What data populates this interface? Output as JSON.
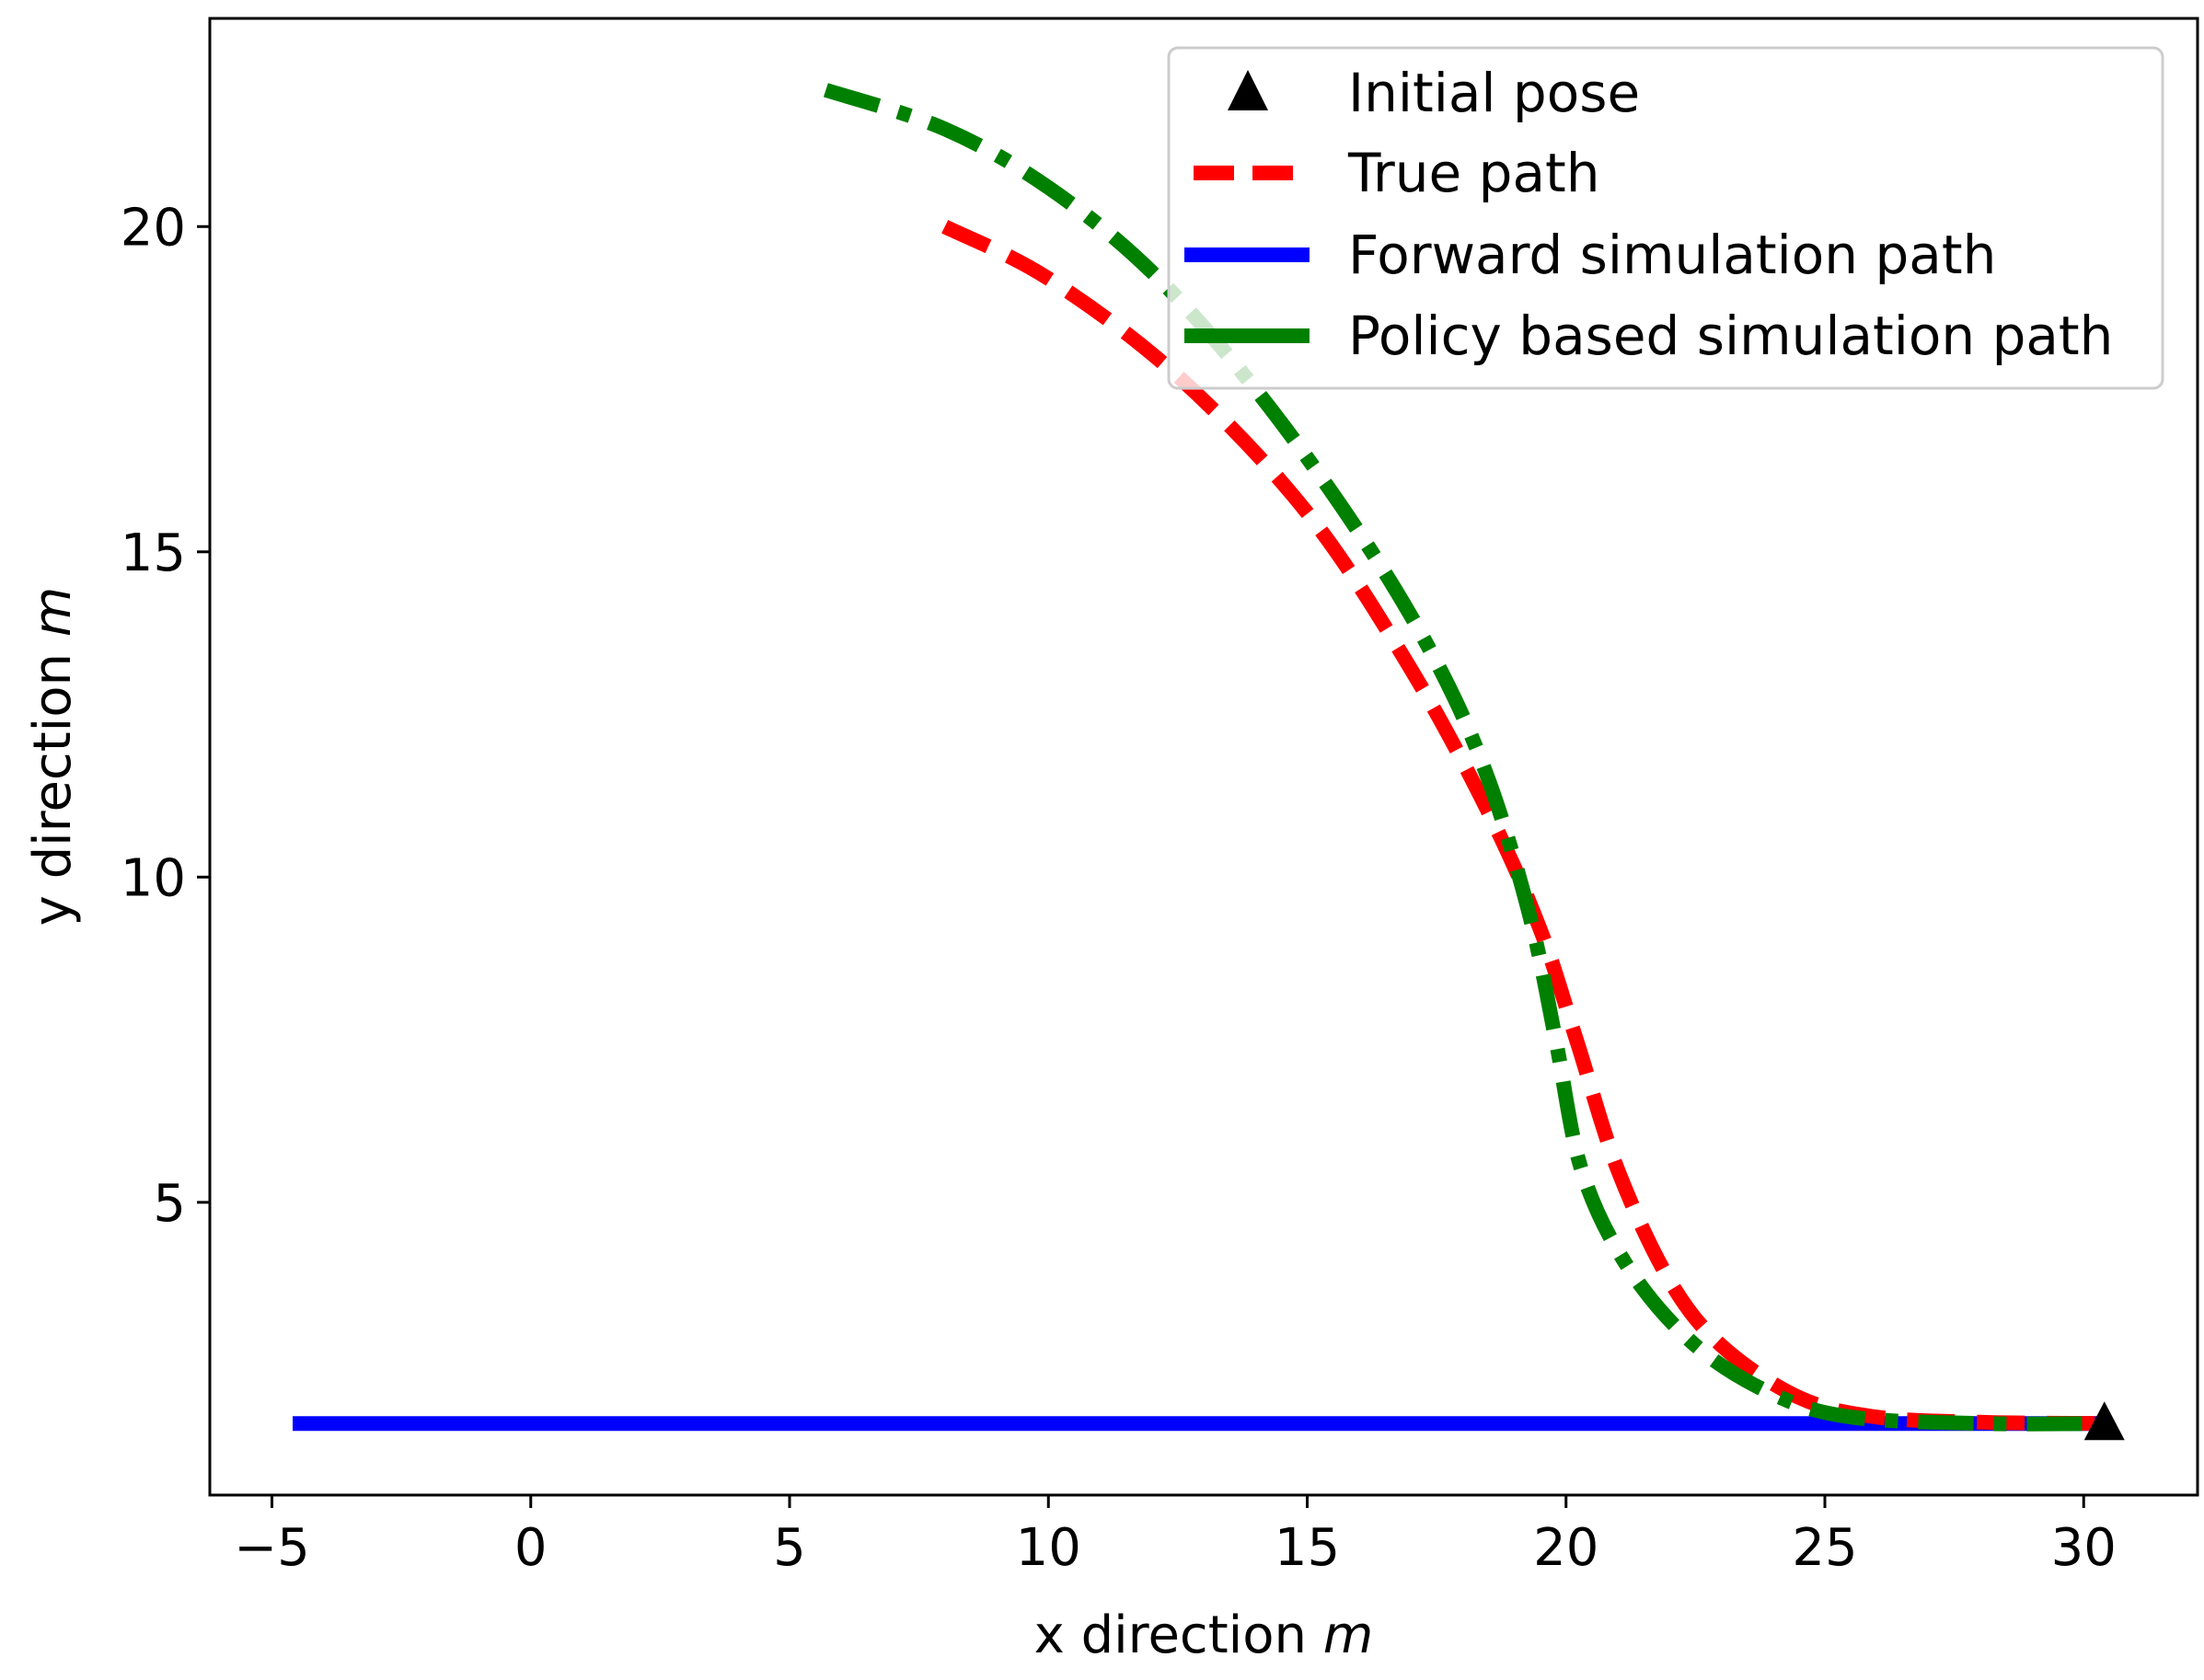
{
  "chart_data": {
    "type": "line",
    "title": "",
    "xlabel": "x direction",
    "xlabel_unit": "m",
    "ylabel": "y direction",
    "ylabel_unit": "m",
    "xlim": [
      -6.2,
      32.2
    ],
    "ylim": [
      0.5,
      23.2
    ],
    "xticks": [
      -5,
      0,
      5,
      10,
      15,
      20,
      25,
      30
    ],
    "xtick_labels": [
      "−5",
      "0",
      "5",
      "10",
      "15",
      "20",
      "25",
      "30"
    ],
    "yticks": [
      5,
      10,
      15,
      20
    ],
    "ytick_labels": [
      "5",
      "10",
      "15",
      "20"
    ],
    "grid": false,
    "legend_position": "top-right",
    "series": [
      {
        "name": "Initial pose",
        "kind": "marker",
        "color": "#000000",
        "points": [
          [
            30.4,
            1.6
          ]
        ]
      },
      {
        "name": "True path",
        "kind": "line",
        "style": "dashed",
        "color": "#ff0000",
        "points": [
          [
            8.0,
            20.0
          ],
          [
            10.0,
            19.2
          ],
          [
            12.5,
            17.7
          ],
          [
            15.0,
            15.6
          ],
          [
            17.0,
            13.2
          ],
          [
            18.5,
            11.0
          ],
          [
            19.5,
            9.2
          ],
          [
            20.2,
            7.5
          ],
          [
            21.0,
            5.5
          ],
          [
            22.0,
            3.8
          ],
          [
            23.0,
            2.8
          ],
          [
            24.5,
            2.0
          ],
          [
            26.0,
            1.7
          ],
          [
            28.0,
            1.62
          ],
          [
            30.4,
            1.6
          ]
        ]
      },
      {
        "name": "Forward simulation path",
        "kind": "line",
        "style": "solid",
        "color": "#0000ff",
        "points": [
          [
            -4.6,
            1.6
          ],
          [
            30.4,
            1.6
          ]
        ]
      },
      {
        "name": "Policy based simulation path",
        "kind": "line",
        "style": "dashdot",
        "color": "#008000",
        "points": [
          [
            5.7,
            22.1
          ],
          [
            8.0,
            21.5
          ],
          [
            10.0,
            20.6
          ],
          [
            12.0,
            19.3
          ],
          [
            14.0,
            17.5
          ],
          [
            16.0,
            15.3
          ],
          [
            17.5,
            13.3
          ],
          [
            18.5,
            11.5
          ],
          [
            19.3,
            9.4
          ],
          [
            19.8,
            7.5
          ],
          [
            20.3,
            5.5
          ],
          [
            21.2,
            4.0
          ],
          [
            22.5,
            2.8
          ],
          [
            24.0,
            2.05
          ],
          [
            25.5,
            1.7
          ],
          [
            28.0,
            1.6
          ],
          [
            30.4,
            1.6
          ]
        ]
      }
    ]
  }
}
